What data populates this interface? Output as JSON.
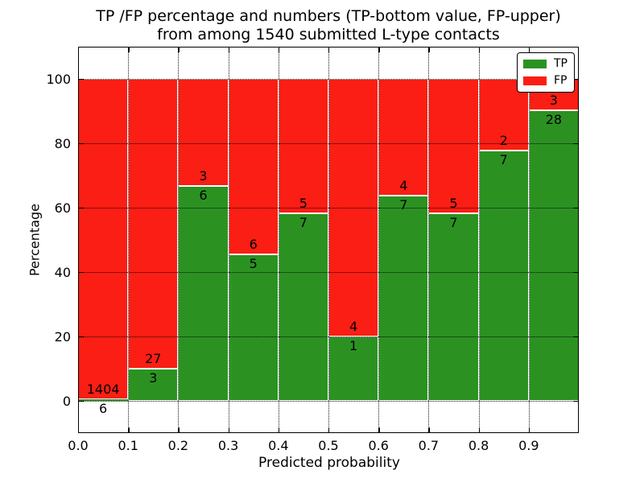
{
  "title": {
    "line1": "TP /FP percentage and numbers (TP-bottom value, FP-upper)",
    "line2": "from among 1540 submitted L-type contacts"
  },
  "chart_data": {
    "type": "bar",
    "stacked": true,
    "normalized": "each bin scaled to 100%",
    "title": "TP /FP percentage and numbers (TP-bottom value, FP-upper) from among 1540 submitted L-type contacts",
    "xlabel": "Predicted probability",
    "ylabel": "Percentage",
    "total_contacts": 1540,
    "bin_edges": [
      0.0,
      0.1,
      0.2,
      0.3,
      0.4,
      0.5,
      0.6,
      0.7,
      0.8,
      0.9,
      1.0
    ],
    "categories": [
      "0.0-0.1",
      "0.1-0.2",
      "0.2-0.3",
      "0.3-0.4",
      "0.4-0.5",
      "0.5-0.6",
      "0.6-0.7",
      "0.7-0.8",
      "0.8-0.9",
      "0.9-1.0"
    ],
    "series": [
      {
        "name": "TP",
        "color": "#2b9222",
        "counts": [
          6,
          3,
          6,
          5,
          7,
          1,
          7,
          7,
          7,
          28
        ]
      },
      {
        "name": "FP",
        "color": "#fb1e14",
        "counts": [
          1404,
          27,
          3,
          6,
          5,
          4,
          4,
          5,
          2,
          3
        ]
      }
    ],
    "tp_percent_heights": [
      0.43,
      10.0,
      66.67,
      45.45,
      58.33,
      20.0,
      63.64,
      58.33,
      77.78,
      90.32
    ],
    "xlim": [
      0.0,
      1.0
    ],
    "ylim": [
      -10,
      110
    ],
    "xticks": [
      0.0,
      0.1,
      0.2,
      0.3,
      0.4,
      0.5,
      0.6,
      0.7,
      0.8,
      0.9
    ],
    "xtick_labels": [
      "0.0",
      "0.1",
      "0.2",
      "0.3",
      "0.4",
      "0.5",
      "0.6",
      "0.7",
      "0.8",
      "0.9"
    ],
    "yticks": [
      0,
      20,
      40,
      60,
      80,
      100
    ],
    "ytick_labels": [
      "0",
      "20",
      "40",
      "60",
      "80",
      "100"
    ],
    "grid": {
      "on": true,
      "style": "dotted",
      "color": "#000000"
    },
    "legend": {
      "position": "upper right",
      "entries": [
        {
          "label": "TP",
          "color": "#2b9222"
        },
        {
          "label": "FP",
          "color": "#fb1e14"
        }
      ]
    }
  },
  "colors": {
    "tp_green": "#2b9222",
    "fp_red": "#fb1e14",
    "background": "#ffffff",
    "axes_and_text": "#000000"
  }
}
